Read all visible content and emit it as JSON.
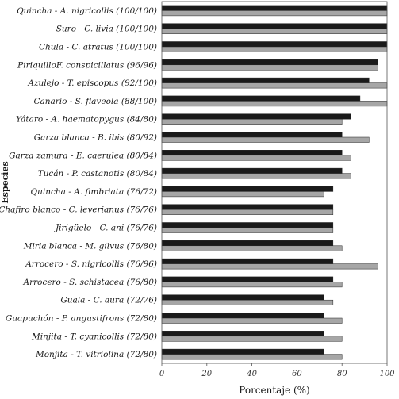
{
  "chart_data": {
    "type": "bar",
    "orientation": "horizontal",
    "xlabel": "Porcentaje  (%)",
    "ylabel": "Especies",
    "xlim": [
      0,
      100
    ],
    "xticks": [
      "0",
      "20",
      "40",
      "60",
      "80",
      "100"
    ],
    "grid": false,
    "legend": "none",
    "categories": [
      "Quincha - A. nigricollis (100/100)",
      "Suro - C. livia (100/100)",
      "Chula - C. atratus (100/100)",
      "PiriquilloF. conspicillatus (96/96)",
      "Azulejo - T. episcopus (92/100)",
      "Canario - S. flaveola (88/100)",
      "Yátaro - A. haematopygus (84/80)",
      "Garza blanca - B. ibis (80/92)",
      "Garza zamura - E. caerulea (80/84)",
      "Tucán - P. castanotis (80/84)",
      "Quincha - A. fimbriata (76/72)",
      "Chafiro blanco - C. leverianus (76/76)",
      "Jirigüelo - C. ani (76/76)",
      "Mirla blanca - M. gilvus (76/80)",
      "Arrocero - S. nigricollis (76/96)",
      "Arrocero - S. schistacea (76/80)",
      "Guala - C. aura (72/76)",
      "Guapuchón - P. angustifrons (72/80)",
      "Minjita - T. cyanicollis (72/80)",
      "Monjita  - T. vitriolina (72/80)"
    ],
    "series": [
      {
        "color": "#1a1a1a",
        "values": [
          100,
          100,
          100,
          96,
          92,
          88,
          84,
          80,
          80,
          80,
          76,
          76,
          76,
          76,
          76,
          76,
          72,
          72,
          72,
          72
        ]
      },
      {
        "color": "#a6a6a6",
        "values": [
          100,
          100,
          100,
          96,
          100,
          100,
          80,
          92,
          84,
          84,
          72,
          76,
          76,
          80,
          96,
          80,
          76,
          80,
          80,
          80
        ]
      }
    ]
  }
}
